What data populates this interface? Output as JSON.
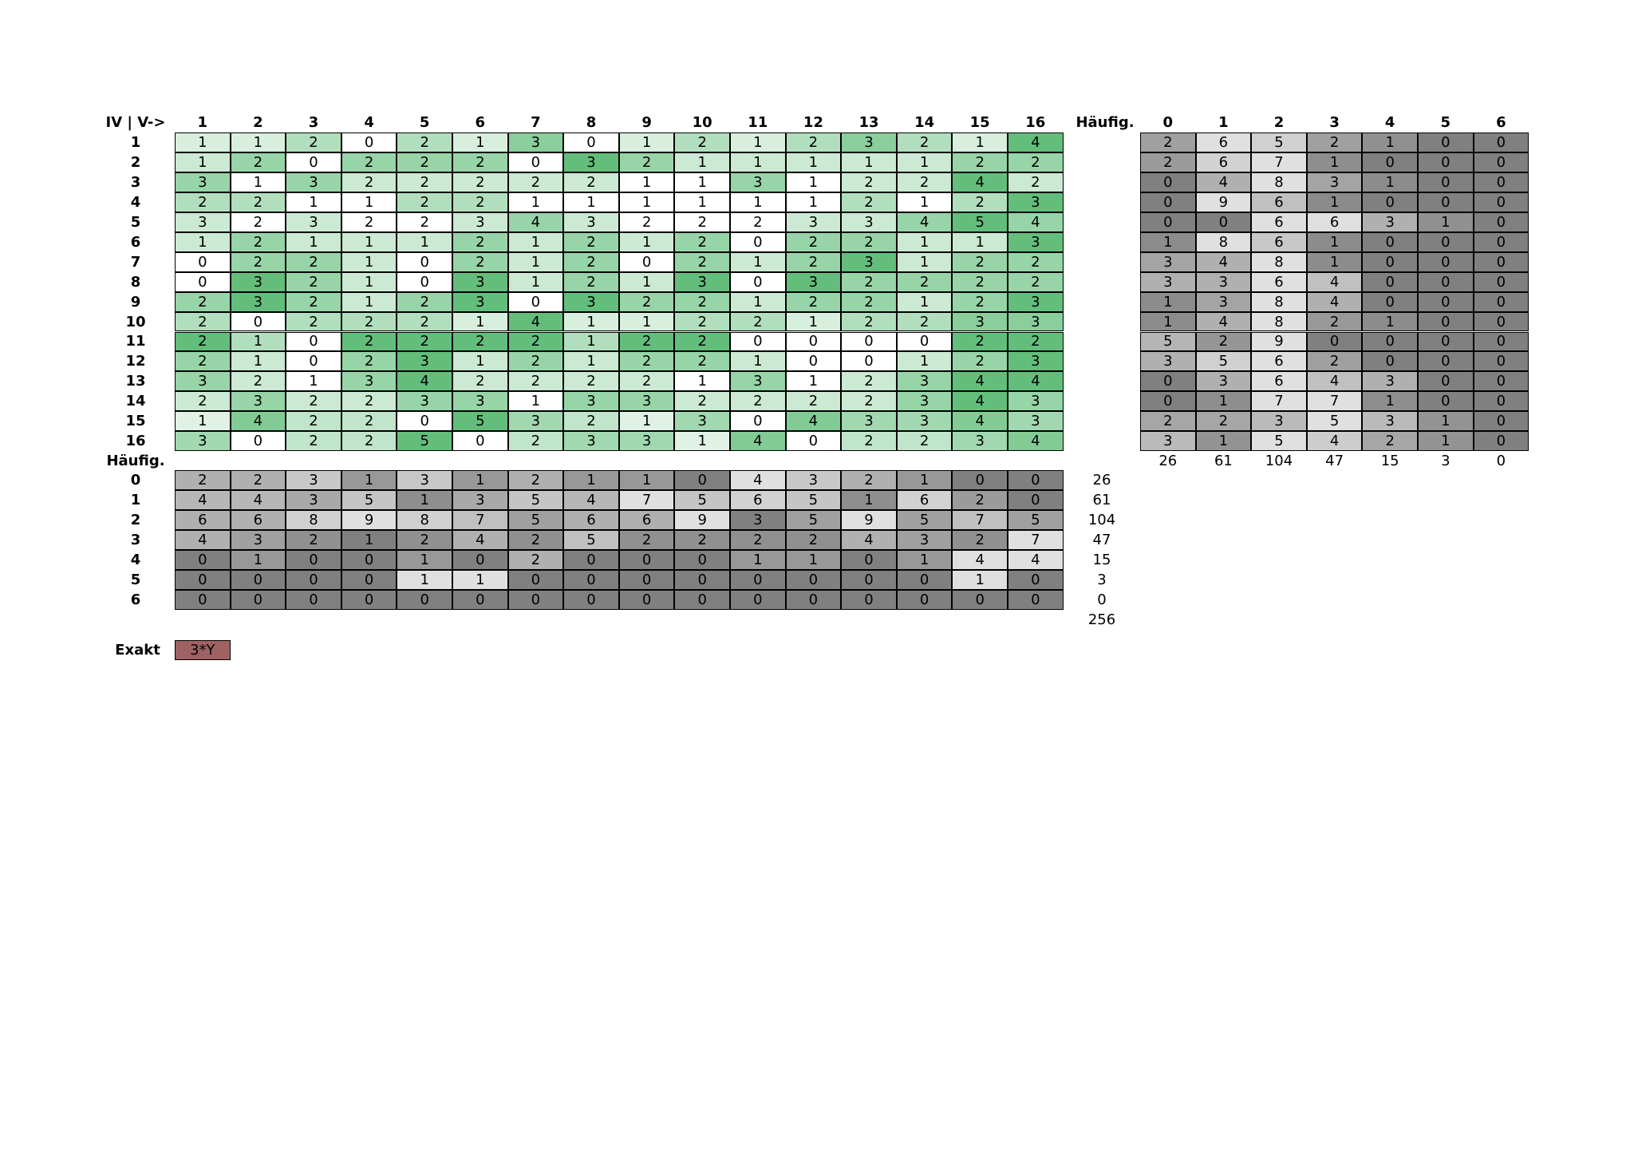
{
  "main": {
    "corner": "IV | V->",
    "col_headers": [
      1,
      2,
      3,
      4,
      5,
      6,
      7,
      8,
      9,
      10,
      11,
      12,
      13,
      14,
      15,
      16
    ],
    "row_headers": [
      1,
      2,
      3,
      4,
      5,
      6,
      7,
      8,
      9,
      10,
      11,
      12,
      13,
      14,
      15,
      16
    ],
    "cells": [
      [
        1,
        1,
        2,
        0,
        2,
        1,
        3,
        0,
        1,
        2,
        1,
        2,
        3,
        2,
        1,
        4
      ],
      [
        1,
        2,
        0,
        2,
        2,
        2,
        0,
        3,
        2,
        1,
        1,
        1,
        1,
        1,
        2,
        2
      ],
      [
        3,
        1,
        3,
        2,
        2,
        2,
        2,
        2,
        1,
        1,
        3,
        1,
        2,
        2,
        4,
        2
      ],
      [
        2,
        2,
        1,
        1,
        2,
        2,
        1,
        1,
        1,
        1,
        1,
        1,
        2,
        1,
        2,
        3
      ],
      [
        3,
        2,
        3,
        2,
        2,
        3,
        4,
        3,
        2,
        2,
        2,
        3,
        3,
        4,
        5,
        4
      ],
      [
        1,
        2,
        1,
        1,
        1,
        2,
        1,
        2,
        1,
        2,
        0,
        2,
        2,
        1,
        1,
        3
      ],
      [
        0,
        2,
        2,
        1,
        0,
        2,
        1,
        2,
        0,
        2,
        1,
        2,
        3,
        1,
        2,
        2
      ],
      [
        0,
        3,
        2,
        1,
        0,
        3,
        1,
        2,
        1,
        3,
        0,
        3,
        2,
        2,
        2,
        2
      ],
      [
        2,
        3,
        2,
        1,
        2,
        3,
        0,
        3,
        2,
        2,
        1,
        2,
        2,
        1,
        2,
        3
      ],
      [
        2,
        0,
        2,
        2,
        2,
        1,
        4,
        1,
        1,
        2,
        2,
        1,
        2,
        2,
        3,
        3
      ],
      [
        2,
        1,
        0,
        2,
        2,
        2,
        2,
        1,
        2,
        2,
        0,
        0,
        0,
        0,
        2,
        2
      ],
      [
        2,
        1,
        0,
        2,
        3,
        1,
        2,
        1,
        2,
        2,
        1,
        0,
        0,
        1,
        2,
        3
      ],
      [
        3,
        2,
        1,
        3,
        4,
        2,
        2,
        2,
        2,
        1,
        3,
        1,
        2,
        3,
        4,
        4
      ],
      [
        2,
        3,
        2,
        2,
        3,
        3,
        1,
        3,
        3,
        2,
        2,
        2,
        2,
        3,
        4,
        3
      ],
      [
        1,
        4,
        2,
        2,
        0,
        5,
        3,
        2,
        1,
        3,
        0,
        4,
        3,
        3,
        4,
        3
      ],
      [
        3,
        0,
        2,
        2,
        5,
        0,
        2,
        3,
        3,
        1,
        4,
        0,
        2,
        2,
        3,
        4
      ]
    ]
  },
  "row_freq": {
    "title": "Häufig.",
    "col_headers": [
      0,
      1,
      2,
      3,
      4,
      5,
      6
    ],
    "cells": [
      [
        2,
        6,
        5,
        2,
        1,
        0,
        0
      ],
      [
        2,
        6,
        7,
        1,
        0,
        0,
        0
      ],
      [
        0,
        4,
        8,
        3,
        1,
        0,
        0
      ],
      [
        0,
        9,
        6,
        1,
        0,
        0,
        0
      ],
      [
        0,
        0,
        6,
        6,
        3,
        1,
        0
      ],
      [
        1,
        8,
        6,
        1,
        0,
        0,
        0
      ],
      [
        3,
        4,
        8,
        1,
        0,
        0,
        0
      ],
      [
        3,
        3,
        6,
        4,
        0,
        0,
        0
      ],
      [
        1,
        3,
        8,
        4,
        0,
        0,
        0
      ],
      [
        1,
        4,
        8,
        2,
        1,
        0,
        0
      ],
      [
        5,
        2,
        9,
        0,
        0,
        0,
        0
      ],
      [
        3,
        5,
        6,
        2,
        0,
        0,
        0
      ],
      [
        0,
        3,
        6,
        4,
        3,
        0,
        0
      ],
      [
        0,
        1,
        7,
        7,
        1,
        0,
        0
      ],
      [
        2,
        2,
        3,
        5,
        3,
        1,
        0
      ],
      [
        3,
        1,
        5,
        4,
        2,
        1,
        0
      ]
    ],
    "totals": [
      26,
      61,
      104,
      47,
      15,
      3,
      0
    ]
  },
  "col_freq": {
    "title": "Häufig.",
    "row_headers": [
      0,
      1,
      2,
      3,
      4,
      5,
      6
    ],
    "cells": [
      [
        2,
        2,
        3,
        1,
        3,
        1,
        2,
        1,
        1,
        0,
        4,
        3,
        2,
        1,
        0,
        0
      ],
      [
        4,
        4,
        3,
        5,
        1,
        3,
        5,
        4,
        7,
        5,
        6,
        5,
        1,
        6,
        2,
        0
      ],
      [
        6,
        6,
        8,
        9,
        8,
        7,
        5,
        6,
        6,
        9,
        3,
        5,
        9,
        5,
        7,
        5
      ],
      [
        4,
        3,
        2,
        1,
        2,
        4,
        2,
        5,
        2,
        2,
        2,
        2,
        4,
        3,
        2,
        7
      ],
      [
        0,
        1,
        0,
        0,
        1,
        0,
        2,
        0,
        0,
        0,
        1,
        1,
        0,
        1,
        4,
        4
      ],
      [
        0,
        0,
        0,
        0,
        1,
        1,
        0,
        0,
        0,
        0,
        0,
        0,
        0,
        0,
        1,
        0
      ],
      [
        0,
        0,
        0,
        0,
        0,
        0,
        0,
        0,
        0,
        0,
        0,
        0,
        0,
        0,
        0,
        0
      ]
    ],
    "totals": [
      26,
      61,
      104,
      47,
      15,
      3,
      0
    ],
    "grand_total": 256
  },
  "exakt": {
    "label": "Exakt",
    "value": "3*Y"
  }
}
